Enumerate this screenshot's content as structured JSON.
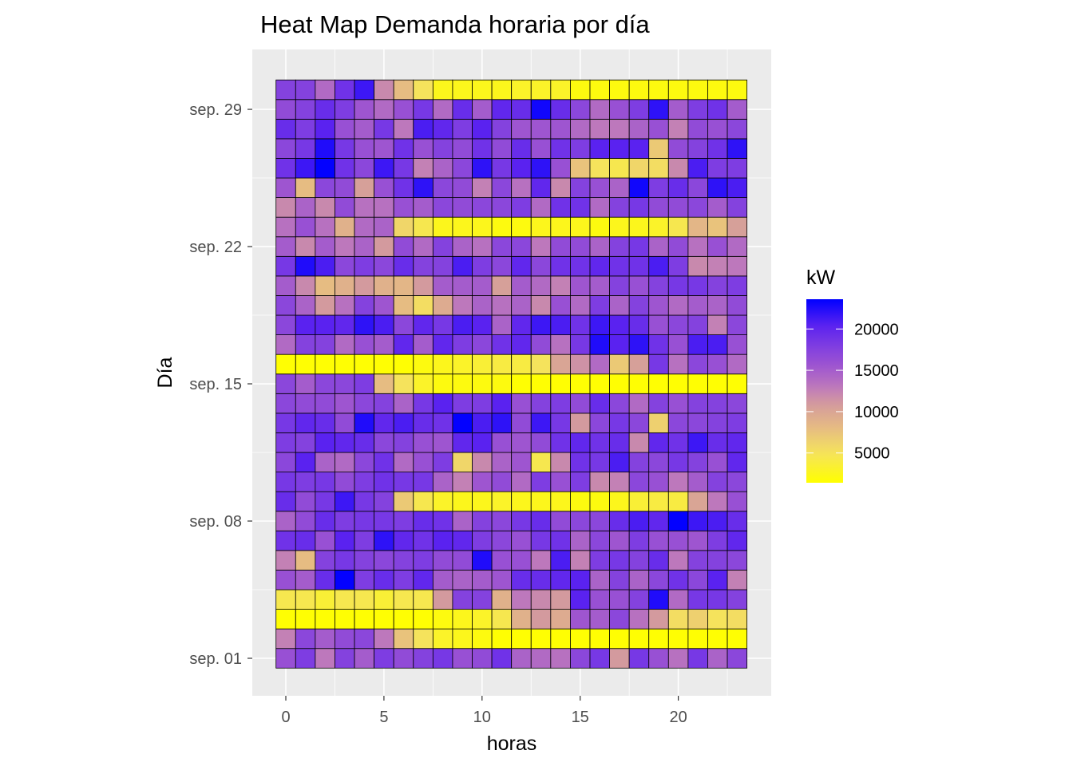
{
  "chart_data": {
    "type": "heatmap",
    "title": "Heat Map Demanda horaria por día",
    "xlabel": "horas",
    "ylabel": "Día",
    "x_ticks": [
      0,
      5,
      10,
      15,
      20
    ],
    "x_tick_labels": [
      "0",
      "5",
      "10",
      "15",
      "20"
    ],
    "y_tick_labels": [
      {
        "day": 29,
        "label": "sep. 29"
      },
      {
        "day": 22,
        "label": "sep. 22"
      },
      {
        "day": 15,
        "label": "sep. 15"
      },
      {
        "day": 8,
        "label": "sep. 08"
      },
      {
        "day": 1,
        "label": "sep. 01"
      }
    ],
    "hours": [
      0,
      1,
      2,
      3,
      4,
      5,
      6,
      7,
      8,
      9,
      10,
      11,
      12,
      13,
      14,
      15,
      16,
      17,
      18,
      19,
      20,
      21,
      22,
      23
    ],
    "legend": {
      "title": "kW",
      "ticks": [
        20000,
        15000,
        10000,
        5000
      ],
      "labels": [
        "20000",
        "15000",
        "10000",
        "5000"
      ],
      "range": [
        1400,
        23600
      ],
      "low_color": "#FFFF00",
      "high_color": "#0000FF",
      "placement": "right"
    },
    "value_unit": "thousands of kW",
    "rows": [
      {
        "day": 1,
        "values": [
          16,
          18,
          13,
          17.5,
          15,
          18,
          16.5,
          17.5,
          18.5,
          16,
          16.5,
          19,
          14.5,
          14,
          13.5,
          17,
          18.5,
          11,
          18.5,
          16,
          13.5,
          18.5,
          14.5,
          17
        ]
      },
      {
        "day": 2,
        "values": [
          12.5,
          17,
          15,
          16.5,
          17,
          13,
          7.5,
          5,
          3,
          2.5,
          2,
          1.5,
          1.5,
          1.5,
          1.5,
          1.5,
          1.5,
          1.5,
          1.5,
          1.5,
          1.5,
          1.5,
          1.5,
          1.5
        ]
      },
      {
        "day": 3,
        "values": [
          1.5,
          1.5,
          1.5,
          1.5,
          1.5,
          1.5,
          1.5,
          1.5,
          2,
          2.5,
          3,
          4.5,
          9,
          11,
          9.5,
          15.5,
          15,
          17,
          13.5,
          11,
          5.5,
          6.5,
          5,
          5.5
        ]
      },
      {
        "day": 4,
        "values": [
          4.5,
          4.5,
          3.5,
          4.5,
          4.5,
          3.5,
          4.5,
          4.5,
          11,
          17.5,
          17.5,
          9,
          13,
          12,
          11,
          20.5,
          16,
          16,
          17.5,
          22.5,
          14,
          18.5,
          18.5,
          17.5
        ]
      },
      {
        "day": 5,
        "values": [
          16,
          15,
          19.5,
          23.5,
          18,
          19.5,
          18,
          20,
          15,
          14.5,
          15,
          15.5,
          19.5,
          19.5,
          20,
          20.5,
          14.5,
          17.5,
          14.5,
          17,
          19,
          17,
          20.5,
          12.5
        ]
      },
      {
        "day": 6,
        "values": [
          12.5,
          8,
          17.5,
          18.5,
          17.5,
          17,
          17.5,
          18,
          16.5,
          16.5,
          22.5,
          16,
          16,
          13,
          21,
          12.5,
          18,
          18.5,
          17.5,
          19.5,
          13,
          17.5,
          17.5,
          17
        ]
      },
      {
        "day": 7,
        "values": [
          19,
          19.5,
          16,
          20.5,
          18,
          22,
          20,
          19,
          20.5,
          20,
          18,
          17,
          16,
          18.5,
          19,
          14.5,
          17,
          15.5,
          18,
          16,
          16,
          15.5,
          18,
          20
        ]
      },
      {
        "day": 8,
        "values": [
          14.5,
          16.5,
          19.5,
          18,
          18.5,
          18.5,
          18,
          19.5,
          19,
          14.5,
          17.5,
          17,
          18.5,
          19.5,
          16.5,
          17,
          17,
          19.5,
          21,
          20,
          23.5,
          21.5,
          21,
          19.5
        ]
      },
      {
        "day": 9,
        "values": [
          19.5,
          16.5,
          18.5,
          21.5,
          18.5,
          17.5,
          7,
          4.5,
          3,
          2.5,
          2.5,
          3,
          2.5,
          2.5,
          2.5,
          2,
          2,
          2.5,
          3.5,
          4,
          4,
          10,
          13,
          16
        ]
      },
      {
        "day": 10,
        "values": [
          18.5,
          18,
          18.5,
          16.5,
          18,
          19,
          18.5,
          18.5,
          14.5,
          12.5,
          15.5,
          16.5,
          14,
          18,
          16,
          18,
          12,
          12.5,
          17,
          16,
          13,
          15,
          17.5,
          17
        ]
      },
      {
        "day": 11,
        "values": [
          17,
          20.5,
          14.5,
          14,
          17,
          19,
          14,
          16,
          18,
          6,
          12,
          14.5,
          15.5,
          4.5,
          12,
          19,
          18.5,
          21,
          17.5,
          17,
          18.5,
          17.5,
          16,
          20
        ]
      },
      {
        "day": 12,
        "values": [
          18,
          17.5,
          20.5,
          20,
          19.5,
          17,
          17.5,
          16,
          15.5,
          20,
          20.5,
          16,
          15.5,
          16.5,
          19,
          20,
          19,
          19.5,
          12,
          20,
          19,
          21.5,
          19.5,
          20
        ]
      },
      {
        "day": 13,
        "values": [
          18.5,
          20,
          19.5,
          16.5,
          22.5,
          20,
          21,
          19.5,
          19,
          23.5,
          21,
          22,
          16.5,
          21.5,
          18.5,
          11,
          17,
          18.5,
          17,
          6.5,
          17,
          17,
          17.5,
          18
        ]
      },
      {
        "day": 14,
        "values": [
          17,
          16.5,
          16.5,
          15.5,
          17,
          17.5,
          14.5,
          18.5,
          20.5,
          18,
          18,
          20.5,
          16,
          17.5,
          18,
          16.5,
          19.5,
          17,
          14,
          17.5,
          16,
          17.5,
          17.5,
          17
        ]
      },
      {
        "day": 15,
        "values": [
          17,
          15,
          17,
          17,
          18,
          8,
          5,
          3,
          2,
          2,
          2,
          2,
          1.5,
          1.5,
          1.5,
          1.5,
          1.5,
          1.5,
          1.5,
          1.5,
          1.5,
          1.5,
          1.5,
          1.5
        ]
      },
      {
        "day": 16,
        "values": [
          1.5,
          1.5,
          1.5,
          1.5,
          1.5,
          1.5,
          1.5,
          2,
          2.5,
          3,
          3.5,
          4,
          4,
          5,
          10,
          11.5,
          14,
          7,
          10.5,
          18.5,
          13.5,
          17,
          16,
          14
        ]
      },
      {
        "day": 17,
        "values": [
          14,
          17.5,
          17.5,
          14,
          16,
          15,
          20,
          15,
          20,
          18,
          17,
          19,
          20,
          16.5,
          13.5,
          18.5,
          22.5,
          20.5,
          22,
          19,
          16,
          21,
          21,
          16
        ]
      },
      {
        "day": 18,
        "values": [
          17,
          20.5,
          20.5,
          20,
          22,
          21,
          17,
          20,
          18.5,
          21,
          20.5,
          14.5,
          20,
          21.5,
          21,
          19,
          21.5,
          20.5,
          19.5,
          16,
          17,
          17.5,
          12.5,
          17
        ]
      },
      {
        "day": 19,
        "values": [
          17,
          14.5,
          11,
          13.5,
          17.5,
          15.5,
          8,
          5.5,
          9.5,
          13,
          14.5,
          13.5,
          14.5,
          12,
          16,
          14,
          18,
          14.5,
          17.5,
          15.5,
          14,
          15,
          14.5,
          16.5
        ]
      },
      {
        "day": 20,
        "values": [
          15,
          12,
          8,
          9,
          11,
          9,
          8.5,
          11,
          15,
          15,
          15,
          10.5,
          15,
          14,
          12.5,
          15.5,
          15,
          17.5,
          16,
          17.5,
          18.5,
          18.5,
          17.5,
          18
        ]
      },
      {
        "day": 21,
        "values": [
          18.5,
          22.5,
          21,
          17,
          18,
          17,
          19.5,
          17.5,
          17.5,
          21,
          18,
          17,
          20,
          17,
          19,
          19,
          20,
          19,
          19,
          21,
          18,
          12,
          12.5,
          13
        ]
      },
      {
        "day": 22,
        "values": [
          15,
          12,
          15,
          13,
          14.5,
          11,
          16.5,
          14,
          17.5,
          14.5,
          13.5,
          17,
          17,
          13,
          16.5,
          16.5,
          14.5,
          17.5,
          18.5,
          14.5,
          16.5,
          13.5,
          16,
          14
        ]
      },
      {
        "day": 23,
        "values": [
          13.5,
          16,
          13.5,
          9,
          14,
          14.5,
          6,
          4.5,
          2.5,
          2.5,
          2.5,
          2,
          2,
          2.5,
          2.5,
          2.5,
          2,
          2.5,
          2.5,
          3,
          4.5,
          8.5,
          7.5,
          10.5
        ]
      },
      {
        "day": 24,
        "values": [
          12,
          14.5,
          12,
          16.5,
          13.5,
          13.5,
          16,
          15,
          17,
          16.5,
          17,
          17,
          18,
          14,
          19,
          19,
          14,
          17.5,
          18.5,
          16.5,
          16.5,
          17,
          15,
          17.5
        ]
      },
      {
        "day": 25,
        "values": [
          15.5,
          8,
          17,
          16.5,
          10.5,
          16,
          19,
          22,
          17,
          16.5,
          12.5,
          17,
          13.5,
          20,
          12,
          17.5,
          16,
          14.5,
          23,
          18,
          19.5,
          17,
          22,
          21
        ]
      },
      {
        "day": 26,
        "values": [
          19,
          21.5,
          23.5,
          19,
          17,
          21.5,
          18.5,
          12.5,
          14.5,
          17,
          22,
          18.5,
          20.5,
          22,
          16,
          7.5,
          5,
          4.5,
          6,
          5.5,
          12,
          21,
          18,
          18
        ]
      },
      {
        "day": 27,
        "values": [
          17,
          18.5,
          22.5,
          18.5,
          16,
          15.5,
          19,
          16,
          17.5,
          16.5,
          19,
          16.5,
          19.5,
          16,
          19,
          18,
          20.5,
          20.5,
          20.5,
          7,
          16.5,
          17.5,
          19,
          22
        ]
      },
      {
        "day": 28,
        "values": [
          19.5,
          18,
          20.5,
          16,
          15,
          18.5,
          13,
          21,
          20,
          18,
          20.5,
          17.5,
          15.5,
          15.5,
          15.5,
          14,
          13,
          13,
          14.5,
          16,
          12.5,
          16.5,
          16,
          17
        ]
      },
      {
        "day": 29,
        "values": [
          16.5,
          17.5,
          19.5,
          18,
          15.5,
          14,
          16,
          18.5,
          14,
          19.5,
          15,
          20,
          19.5,
          23,
          19.5,
          17,
          14,
          16,
          18,
          22,
          15,
          18,
          19,
          15
        ]
      },
      {
        "day": 30,
        "values": [
          17.5,
          17.5,
          14,
          19,
          21.5,
          12,
          8,
          5,
          2.5,
          2.5,
          2.5,
          2.5,
          3,
          3,
          3,
          2,
          2,
          2,
          2,
          2,
          2,
          2,
          2,
          2
        ]
      }
    ]
  }
}
